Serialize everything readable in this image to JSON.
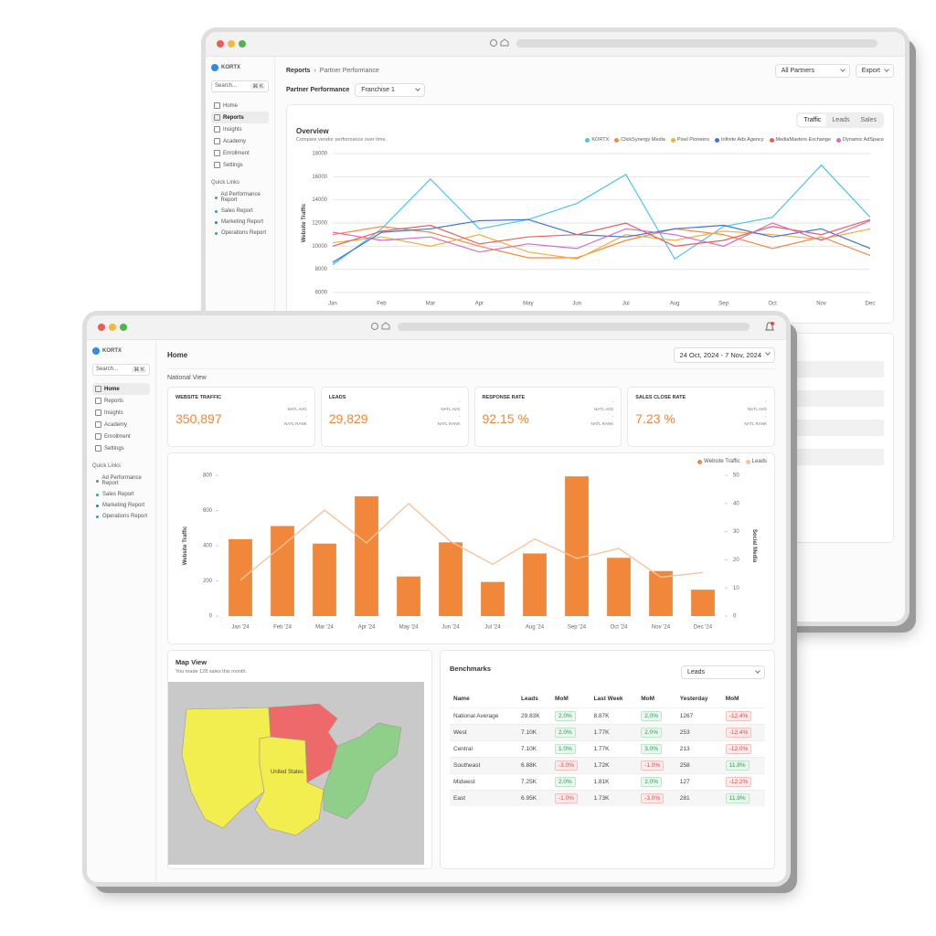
{
  "chart_data": [
    {
      "type": "line",
      "title": "Overview",
      "subtitle": "Compare vendor performance over time.",
      "y_label": "Website Traffic",
      "categories": [
        "Jan",
        "Feb",
        "Mar",
        "Apr",
        "May",
        "Jun",
        "Jul",
        "Aug",
        "Sep",
        "Oct",
        "Nov",
        "Dec"
      ],
      "series": [
        {
          "name": "KORTX",
          "color": "#4fc3ea",
          "values": [
            8400,
            11500,
            15800,
            11500,
            12300,
            13700,
            16200,
            8900,
            11700,
            12500,
            17000,
            12500
          ]
        },
        {
          "name": "ClickSynergy Media",
          "color": "#f08a45",
          "values": [
            11000,
            11700,
            11200,
            10000,
            9000,
            9000,
            10500,
            11500,
            11000,
            9800,
            10800,
            9200
          ]
        },
        {
          "name": "Pixel Pioneers",
          "color": "#f2b03c",
          "values": [
            10300,
            10800,
            10000,
            11000,
            9500,
            8900,
            11000,
            10500,
            11300,
            11000,
            10600,
            11500
          ]
        },
        {
          "name": "Infinite Ads Agency",
          "color": "#3f73d9",
          "values": [
            8600,
            11200,
            11500,
            12200,
            12300,
            11000,
            10800,
            11500,
            11800,
            10800,
            11500,
            9800
          ]
        },
        {
          "name": "MediaMasters Exchange",
          "color": "#e0635a",
          "values": [
            10000,
            11300,
            11800,
            10200,
            10800,
            11000,
            12000,
            10000,
            10500,
            11700,
            11000,
            12300
          ]
        },
        {
          "name": "Dynamic AdSpace",
          "color": "#d66cc0",
          "values": [
            11200,
            10500,
            10800,
            9500,
            10200,
            9800,
            11500,
            11000,
            10000,
            12000,
            10500,
            12200
          ]
        }
      ],
      "ylim": [
        6000,
        18000
      ],
      "yticks": [
        6000,
        8000,
        10000,
        12000,
        14000,
        16000,
        18000
      ],
      "grid": true
    },
    {
      "type": "bar",
      "y_label": "Website Traffic",
      "y2_label": "Social Media",
      "categories": [
        "Jan '24",
        "Feb '24",
        "Mar '24",
        "Apr '24",
        "May '24",
        "Jun '24",
        "Jul '24",
        "Aug '24",
        "Sep '24",
        "Oct '24",
        "Nov '24",
        "Dec '24"
      ],
      "series": [
        {
          "name": "Website Traffic",
          "color": "#f0873a",
          "values": [
            437,
            512,
            412,
            681,
            225,
            419,
            194,
            356,
            794,
            331,
            256,
            150
          ]
        },
        {
          "name": "Leads",
          "color": "#f6c49c",
          "axis": "y2",
          "values": [
            12.8,
            25,
            37.6,
            26,
            40,
            26.5,
            18.4,
            27.4,
            20.5,
            24,
            13.8,
            15.5
          ]
        }
      ],
      "ylim": [
        0,
        800
      ],
      "yticks": [
        0,
        200,
        400,
        600,
        800
      ],
      "y2lim": [
        0,
        50
      ],
      "y2ticks": [
        0,
        10,
        20,
        30,
        40,
        50
      ]
    }
  ],
  "back": {
    "sidebar": {
      "logo": "KORTX",
      "search": "Search...",
      "shortcut": "⌘ K",
      "nav": [
        "Home",
        "Reports",
        "Insights",
        "Academy",
        "Enrollment",
        "Settings"
      ],
      "quick_links_title": "Quick Links",
      "quick_links": [
        "Ad Performance Report",
        "Sales Report",
        "Marketing Report",
        "Operations Report"
      ]
    },
    "breadcrumb": [
      "Reports",
      "›",
      "Partner Performance"
    ],
    "partner_filter": "All Partners",
    "export": "Export",
    "page_label": "Partner Performance",
    "franchise": "Franchise 1",
    "tabs": [
      "Traffic",
      "Leads",
      "Sales"
    ]
  },
  "front": {
    "sidebar": {
      "logo": "KORTX",
      "search": "Search...",
      "shortcut": "⌘ K",
      "nav": [
        "Home",
        "Reports",
        "Insights",
        "Academy",
        "Enrollment",
        "Settings"
      ],
      "quick_links_title": "Quick Links",
      "quick_links": [
        "Ad Performance Report",
        "Sales Report",
        "Marketing Report",
        "Operations Report"
      ]
    },
    "page_title": "Home",
    "section": "National View",
    "date_range": "24 Oct, 2024 - 7 Nov, 2024",
    "kpis": [
      {
        "label": "WEBSITE TRAFFIC",
        "value": "350,897",
        "sub": [
          "-",
          "NATL AVG",
          "-",
          "NATL RANK"
        ]
      },
      {
        "label": "LEADS",
        "value": "29,829",
        "sub": [
          "-",
          "NATL AVG",
          "-",
          "NATL RANK"
        ]
      },
      {
        "label": "RESPONSE RATE",
        "value": "92.15 %",
        "sub": [
          "-",
          "NATL AVG",
          "-",
          "NATL RANK"
        ]
      },
      {
        "label": "SALES CLOSE RATE",
        "value": "7.23 %",
        "sub": [
          "-",
          "NATL AVG",
          "-",
          "NATL RANK"
        ]
      }
    ],
    "map": {
      "title": "Map View",
      "subtitle": "You made 128 sales this month.",
      "label": "United States"
    },
    "benchmarks": {
      "title": "Benchmarks",
      "dropdown": "Leads",
      "headers": [
        "Name",
        "Leads",
        "MoM",
        "Last Week",
        "MoM",
        "Yesterday",
        "MoM"
      ],
      "rows": [
        [
          "National Average",
          "29.83K",
          "2.0%",
          "8.87K",
          "2.0%",
          "1267",
          "-12.4%"
        ],
        [
          "West",
          "7.10K",
          "2.0%",
          "1.77K",
          "2.0%",
          "253",
          "-12.4%"
        ],
        [
          "Central",
          "7.10K",
          "1.0%",
          "1.77K",
          "3.0%",
          "213",
          "-12.0%"
        ],
        [
          "Southeast",
          "6.88K",
          "-3.0%",
          "1.72K",
          "-1.0%",
          "258",
          "11.8%"
        ],
        [
          "Midwest",
          "7.25K",
          "2.0%",
          "1.81K",
          "2.0%",
          "127",
          "-12.2%"
        ],
        [
          "East",
          "6.95K",
          "-1.0%",
          "1.73K",
          "-3.0%",
          "281",
          "11.9%"
        ]
      ]
    }
  }
}
